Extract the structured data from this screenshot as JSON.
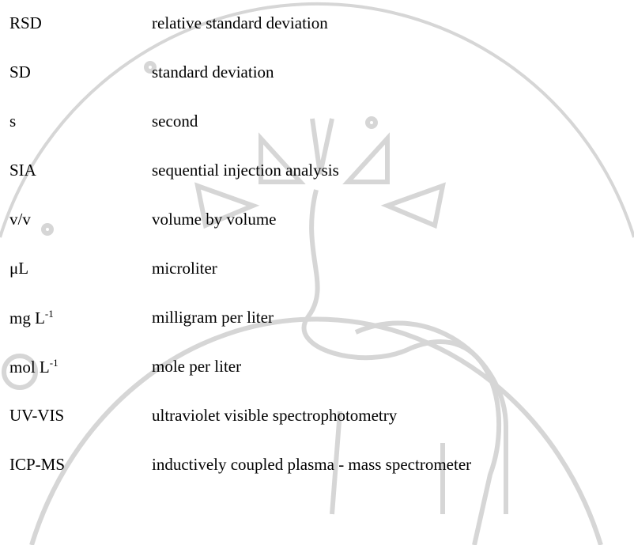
{
  "abbreviations": [
    {
      "term": "RSD",
      "definition": "relative standard deviation"
    },
    {
      "term": "SD",
      "definition": "standard deviation"
    },
    {
      "term": "s",
      "definition": "second"
    },
    {
      "term": "SIA",
      "definition": "sequential injection analysis"
    },
    {
      "term": "v/v",
      "definition": "volume by volume"
    },
    {
      "term": "μL",
      "definition": "microliter"
    },
    {
      "term": "mg L",
      "sup": "-1",
      "definition": "milligram per liter"
    },
    {
      "term": "mol L",
      "sup": "-1",
      "definition": "mole per liter"
    },
    {
      "term": "UV-VIS",
      "definition": "ultraviolet visible spectrophotometry"
    },
    {
      "term": "ICP-MS",
      "definition": "inductively coupled plasma - mass spectrometer"
    }
  ]
}
